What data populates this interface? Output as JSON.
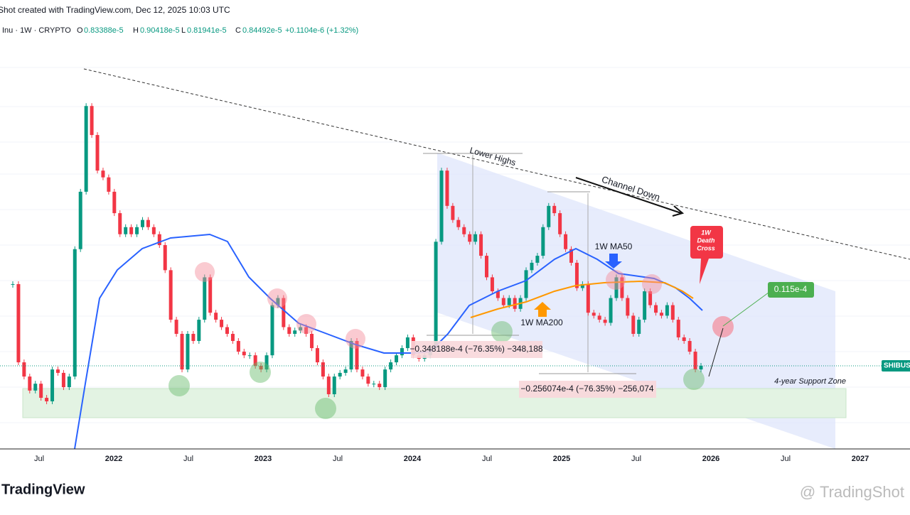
{
  "header": {
    "created": "Shot created with TradingView.com, Dec 12, 2025 10:03 UTC"
  },
  "legend": {
    "symbol": "Inu · 1W · CRYPTO",
    "open_label": "O",
    "open": "0.83388e-5",
    "high_label": "H",
    "high": "0.90418e-5",
    "low_label": "L",
    "low": "0.81941e-5",
    "close_label": "C",
    "close": "0.84492e-5",
    "change": "+0.1104e-6 (+1.32%)"
  },
  "chart_data": {
    "type": "candlestick",
    "log_scale": true,
    "ylim": [
      0.436,
      11.4
    ],
    "up_color": "#089981",
    "down_color": "#f23645",
    "closes": [
      1.62,
      0.869,
      0.776,
      0.694,
      0.733,
      0.655,
      0.637,
      0.821,
      0.799,
      0.713,
      0.776,
      2.14,
      3.38,
      6.69,
      5.31,
      4.0,
      3.79,
      3.38,
      2.85,
      2.41,
      2.55,
      2.41,
      2.55,
      2.7,
      2.55,
      2.41,
      2.21,
      1.81,
      1.22,
      1.09,
      0.821,
      1.09,
      1.03,
      1.22,
      1.71,
      1.29,
      1.22,
      1.15,
      1.09,
      1.03,
      0.946,
      0.919,
      0.919,
      0.845,
      0.821,
      0.919,
      1.37,
      1.45,
      1.15,
      1.09,
      1.12,
      1.15,
      1.09,
      0.973,
      0.869,
      0.776,
      0.674,
      0.776,
      0.799,
      0.821,
      1.03,
      0.821,
      0.776,
      0.733,
      0.733,
      0.713,
      0.821,
      0.869,
      0.919,
      0.973,
      1.06,
      0.919,
      0.894,
      0.919,
      0.973,
      2.27,
      4.0,
      3.02,
      2.7,
      2.55,
      2.41,
      2.27,
      2.41,
      2.03,
      1.71,
      1.53,
      1.45,
      1.37,
      1.45,
      1.33,
      1.45,
      1.81,
      1.92,
      2.03,
      2.55,
      3.02,
      2.85,
      2.41,
      2.14,
      1.92,
      1.57,
      1.62,
      1.29,
      1.26,
      1.22,
      1.19,
      1.45,
      1.71,
      1.45,
      1.26,
      1.09,
      1.22,
      1.53,
      1.37,
      1.29,
      1.26,
      1.37,
      1.22,
      1.06,
      1.03,
      0.946,
      0.821,
      0.845
    ],
    "time_labels": [
      "Jul",
      "2022",
      "Jul",
      "2023",
      "Jul",
      "2024",
      "Jul",
      "2025",
      "Jul",
      "2026",
      "Jul",
      "2027"
    ]
  },
  "annotations": {
    "lower_highs": "Lower Highs",
    "channel_down": "Channel Down",
    "ma50": "1W MA50",
    "ma200": "1W MA200",
    "death_cross": [
      "1W",
      "Death",
      "Cross"
    ],
    "target": "0.115e-4",
    "drop1": "−0.348188e-4 (−76.35%) −348,188",
    "drop2": "−0.256074e-4 (−76.35%) −256,074",
    "support": "4-year Support Zone",
    "symbol_tag": "SHIBUSD"
  },
  "footer": {
    "logo": "TradingView",
    "watermark": "@ TradingShot"
  }
}
